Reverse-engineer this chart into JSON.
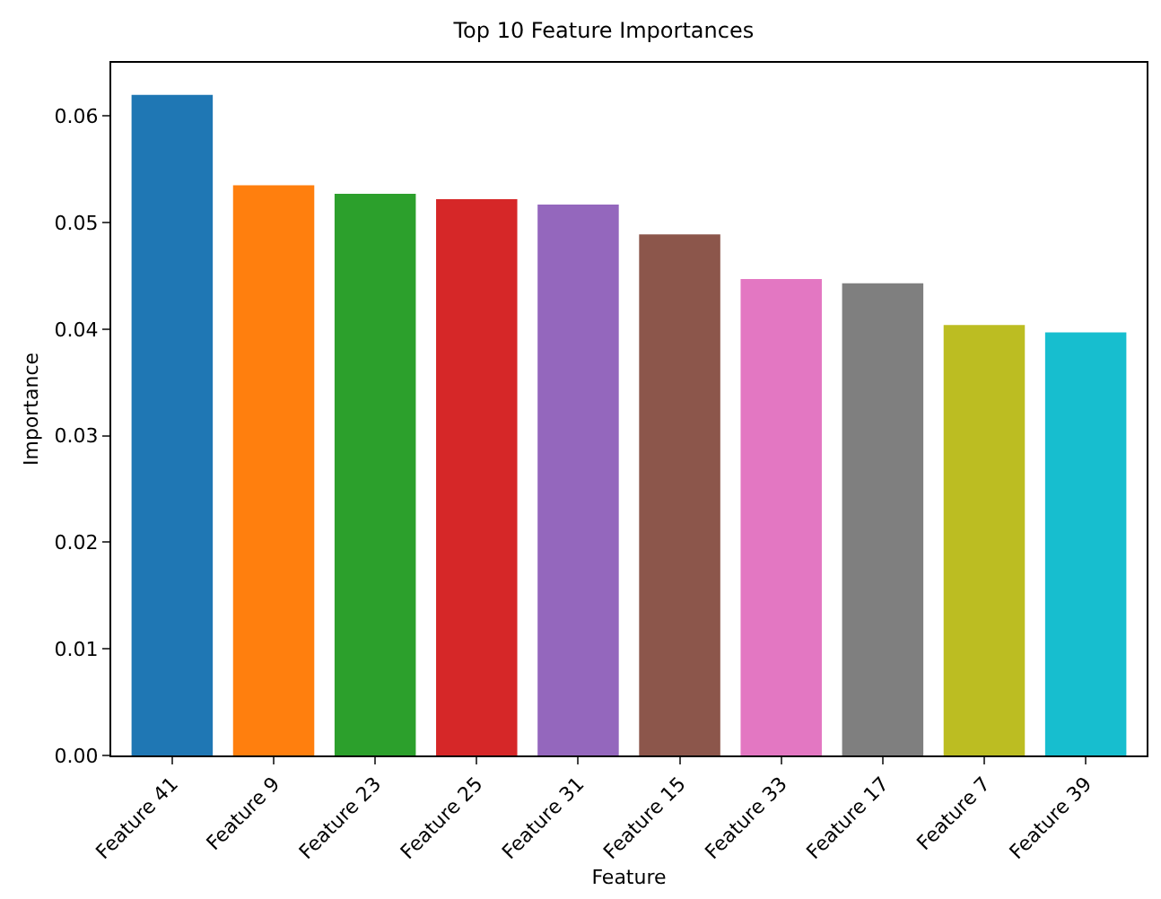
{
  "chart_data": {
    "type": "bar",
    "title": "Top 10 Feature Importances",
    "xlabel": "Feature",
    "ylabel": "Importance",
    "categories": [
      "Feature 41",
      "Feature 9",
      "Feature 23",
      "Feature 25",
      "Feature 31",
      "Feature 15",
      "Feature 33",
      "Feature 17",
      "Feature 7",
      "Feature 39"
    ],
    "values": [
      0.062,
      0.0535,
      0.0527,
      0.0522,
      0.0517,
      0.0489,
      0.0447,
      0.0443,
      0.0404,
      0.0397
    ],
    "colors": [
      "#1f77b4",
      "#ff7f0e",
      "#2ca02c",
      "#d62728",
      "#9467bd",
      "#8c564b",
      "#e377c2",
      "#7f7f7f",
      "#bcbd22",
      "#17becf"
    ],
    "ylim": [
      0,
      0.065
    ],
    "yticks": [
      {
        "value": 0,
        "label": "0.00"
      },
      {
        "value": 0.01,
        "label": "0.01"
      },
      {
        "value": 0.02,
        "label": "0.02"
      },
      {
        "value": 0.03,
        "label": "0.03"
      },
      {
        "value": 0.04,
        "label": "0.04"
      },
      {
        "value": 0.05,
        "label": "0.05"
      },
      {
        "value": 0.06,
        "label": "0.06"
      }
    ],
    "grid": false
  }
}
